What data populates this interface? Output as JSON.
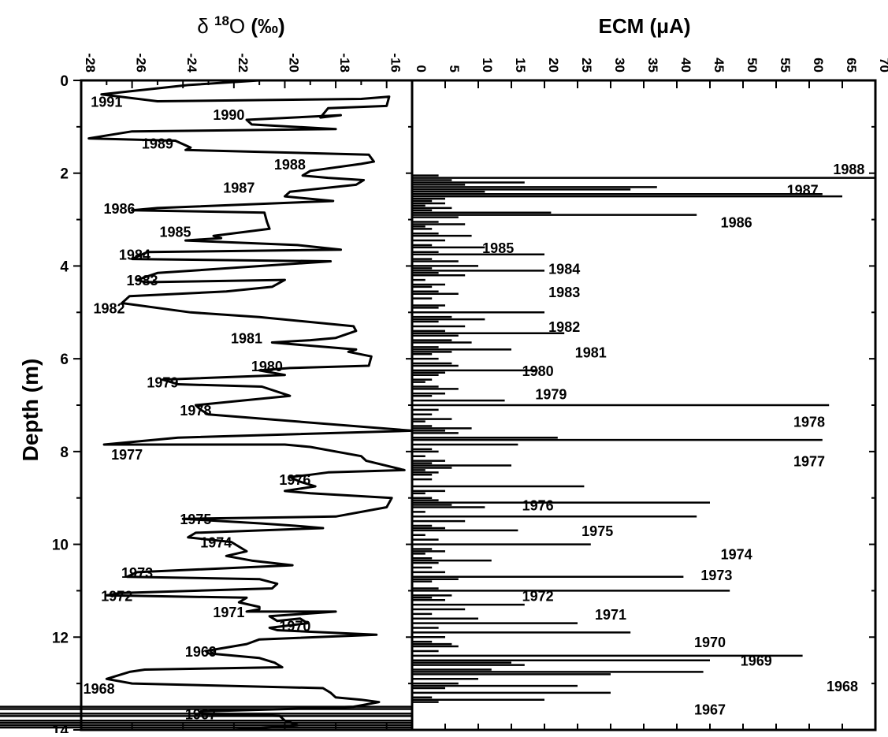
{
  "chart_data": [
    {
      "type": "line",
      "title": "δ ¹⁸O (‰)",
      "title_parts": {
        "symbol": "δ",
        "sup": "18",
        "element": "O",
        "unit": "(‰)"
      },
      "ylabel": "Depth (m)",
      "xlim": [
        -28,
        -15
      ],
      "ylim": [
        0,
        14
      ],
      "y_inverted": true,
      "x_axis_position": "top",
      "x_ticks": [
        "-28",
        "-26",
        "-24",
        "-22",
        "-20",
        "-18",
        "-16"
      ],
      "y_ticks": [
        "0",
        "2",
        "4",
        "6",
        "8",
        "10",
        "12",
        "14"
      ],
      "series": [
        {
          "x": [
            -21.0,
            -23.8,
            -27.2,
            -25.0,
            -17.0,
            -15.9,
            -16.0,
            -18.3,
            -18.6,
            -17.8,
            -21.5,
            -21.3,
            -18.0,
            -26.0,
            -27.7,
            -24.3,
            -23.7,
            -23.9,
            -16.7,
            -16.5,
            -17.0,
            -19.0,
            -19.3,
            -18.3,
            -16.9,
            -17.2,
            -19.8,
            -20.0,
            -18.1,
            -25.0,
            -26.0,
            -20.8,
            -20.7,
            -20.6,
            -22.8,
            -22.5,
            -23.9,
            -19.5,
            -17.8,
            -25.4,
            -26.0,
            -18.2,
            -25.0,
            -25.8,
            -25.5,
            -20.0,
            -20.5,
            -22.3,
            -26.1,
            -26.4,
            -23.7,
            -21.0,
            -17.3,
            -17.2,
            -18.0,
            -19.0,
            -20.5,
            -17.2,
            -17.5,
            -16.6,
            -16.7,
            -19.8,
            -21.0,
            -20.0,
            -24.8,
            -24.2,
            -20.9,
            -19.8,
            -23.5,
            -23.3,
            -23.0,
            -15.0,
            -24.2,
            -27.1,
            -20.0,
            -19.0,
            -17.0,
            -16.8,
            -15.3,
            -18.3,
            -19.0,
            -19.8,
            -19.4,
            -18.8,
            -20.0,
            -19.0,
            -15.8,
            -16.0,
            -18.0,
            -24.0,
            -20.9,
            -19.6,
            -18.5,
            -23.5,
            -23.8,
            -22.1,
            -21.8,
            -21.5,
            -22.3,
            -21.3,
            -19.7,
            -25.8,
            -26.2,
            -21.0,
            -20.3,
            -20.5,
            -26.5,
            -27.0,
            -21.5,
            -21.8,
            -21.0,
            -21.0,
            -21.5,
            -18.0,
            -20.6,
            -20.3,
            -19.4,
            -19.1,
            -20.6,
            -20.3,
            -16.4,
            -21.0,
            -21.5,
            -23.1,
            -23.0,
            -21.0,
            -20.4,
            -20.1,
            -25.5,
            -26.1,
            -27.0,
            -26.0,
            -18.5,
            -18.2,
            -18.0,
            -17.0,
            -16.3,
            -17.3,
            -19.9,
            -23.3,
            -23.3,
            -20.2,
            -20.0,
            -19.5,
            -22.0,
            -24.0
          ],
          "y": [
            0.0,
            0.1,
            0.3,
            0.45,
            0.4,
            0.35,
            0.55,
            0.6,
            0.8,
            0.75,
            0.85,
            0.95,
            1.05,
            1.1,
            1.25,
            1.3,
            1.45,
            1.5,
            1.6,
            1.75,
            1.8,
            1.95,
            2.05,
            2.1,
            2.15,
            2.25,
            2.4,
            2.5,
            2.6,
            2.75,
            2.8,
            2.85,
            3.05,
            3.2,
            3.35,
            3.4,
            3.45,
            3.55,
            3.65,
            3.7,
            3.85,
            3.9,
            4.15,
            4.3,
            4.35,
            4.3,
            4.45,
            4.55,
            4.65,
            4.8,
            5.0,
            5.1,
            5.3,
            5.4,
            5.55,
            5.6,
            5.65,
            5.8,
            5.85,
            5.95,
            6.15,
            6.2,
            6.25,
            6.35,
            6.45,
            6.55,
            6.6,
            6.8,
            7.0,
            7.1,
            7.2,
            7.55,
            7.7,
            7.85,
            7.85,
            7.9,
            8.1,
            8.2,
            8.4,
            8.45,
            8.5,
            8.55,
            8.65,
            8.75,
            8.85,
            8.9,
            9.0,
            9.2,
            9.4,
            9.45,
            9.55,
            9.6,
            9.65,
            9.75,
            9.85,
            9.95,
            10.05,
            10.15,
            10.25,
            10.35,
            10.45,
            10.6,
            10.7,
            10.75,
            10.85,
            10.95,
            11.05,
            11.1,
            11.15,
            11.25,
            11.35,
            11.4,
            11.45,
            11.45,
            11.55,
            11.65,
            11.6,
            11.7,
            11.8,
            11.85,
            11.95,
            12.05,
            12.15,
            12.3,
            12.35,
            12.45,
            12.55,
            12.65,
            12.7,
            12.75,
            12.9,
            13.0,
            13.1,
            13.2,
            13.3,
            13.35,
            13.4,
            13.5,
            13.55,
            13.6,
            13.65,
            13.7,
            13.8,
            13.9,
            14.0,
            14.0
          ]
        }
      ],
      "annotations": [
        "1991",
        "1990",
        "1989",
        "1988",
        "1987",
        "1986",
        "1985",
        "1984",
        "1983",
        "1982",
        "1981",
        "1980",
        "1979",
        "1978",
        "1977",
        "1976",
        "1975",
        "1974",
        "1973",
        "1972",
        "1971",
        "1970",
        "1969",
        "1968",
        "1967"
      ]
    },
    {
      "type": "bar",
      "orientation": "horizontal",
      "title": "ECM (μA)",
      "title_parts": {
        "name": "ECM",
        "unit": "(μA)"
      },
      "xlim": [
        0,
        70
      ],
      "ylim": [
        0,
        14
      ],
      "y_inverted": true,
      "x_axis_position": "top",
      "x_ticks": [
        "0",
        "5",
        "10",
        "15",
        "20",
        "25",
        "30",
        "35",
        "40",
        "45",
        "50",
        "55",
        "60",
        "65",
        "70"
      ],
      "series": [
        {
          "depth": [
            2.05,
            2.1,
            2.15,
            2.2,
            2.25,
            2.3,
            2.35,
            2.4,
            2.45,
            2.5,
            2.55,
            2.6,
            2.65,
            2.7,
            2.75,
            2.8,
            2.85,
            2.9,
            2.95,
            3.05,
            3.1,
            3.15,
            3.2,
            3.3,
            3.35,
            3.45,
            3.55,
            3.6,
            3.7,
            3.75,
            3.85,
            3.9,
            4.0,
            4.05,
            4.1,
            4.15,
            4.2,
            4.3,
            4.4,
            4.45,
            4.55,
            4.6,
            4.7,
            4.85,
            4.9,
            5.0,
            5.1,
            5.15,
            5.2,
            5.3,
            5.4,
            5.45,
            5.5,
            5.6,
            5.65,
            5.75,
            5.8,
            5.85,
            5.9,
            6.0,
            6.1,
            6.15,
            6.25,
            6.3,
            6.35,
            6.45,
            6.5,
            6.6,
            6.65,
            6.75,
            6.8,
            6.9,
            7.0,
            7.1,
            7.2,
            7.3,
            7.35,
            7.45,
            7.5,
            7.55,
            7.6,
            7.7,
            7.75,
            7.85,
            7.95,
            8.0,
            8.1,
            8.2,
            8.25,
            8.3,
            8.35,
            8.4,
            8.45,
            8.5,
            8.6,
            8.75,
            8.85,
            8.9,
            9.0,
            9.05,
            9.1,
            9.15,
            9.2,
            9.3,
            9.4,
            9.5,
            9.6,
            9.65,
            9.7,
            9.8,
            9.9,
            10.0,
            10.1,
            10.15,
            10.2,
            10.3,
            10.35,
            10.4,
            10.5,
            10.6,
            10.7,
            10.75,
            10.8,
            10.95,
            11.0,
            11.1,
            11.15,
            11.2,
            11.3,
            11.4,
            11.5,
            11.6,
            11.7,
            11.8,
            11.9,
            12.0,
            12.1,
            12.15,
            12.2,
            12.3,
            12.4,
            12.5,
            12.55,
            12.6,
            12.7,
            12.75,
            12.8,
            12.9,
            13.0,
            13.05,
            13.1,
            13.2,
            13.3,
            13.35,
            13.4,
            13.5,
            13.55,
            13.65,
            13.7,
            13.8,
            13.85,
            13.9,
            13.95
          ],
          "values": [
            4,
            70,
            6,
            17,
            8,
            37,
            33,
            11,
            62,
            65,
            5,
            3,
            5,
            2,
            6,
            3,
            21,
            43,
            7,
            4,
            8,
            2,
            3,
            4,
            9,
            5,
            3,
            11,
            4,
            20,
            3,
            7,
            10,
            3,
            20,
            4,
            8,
            2,
            5,
            3,
            4,
            7,
            3,
            5,
            4,
            20,
            6,
            11,
            4,
            8,
            5,
            23,
            7,
            6,
            9,
            4,
            15,
            6,
            3,
            4,
            6,
            7,
            19,
            5,
            4,
            3,
            2,
            4,
            7,
            5,
            3,
            14,
            63,
            4,
            3,
            6,
            2,
            3,
            9,
            5,
            7,
            22,
            62,
            16,
            3,
            4,
            2,
            5,
            3,
            15,
            6,
            2,
            4,
            3,
            3,
            26,
            5,
            2,
            3,
            4,
            45,
            6,
            11,
            2,
            43,
            8,
            3,
            5,
            16,
            2,
            4,
            27,
            3,
            5,
            2,
            3,
            12,
            4,
            3,
            5,
            41,
            7,
            3,
            4,
            48,
            6,
            3,
            5,
            17,
            8,
            3,
            10,
            25,
            4,
            33,
            5,
            3,
            6,
            7,
            4,
            59,
            45,
            15,
            17,
            12,
            44,
            30,
            10,
            7,
            25,
            5,
            30,
            3,
            20,
            4
          ]
        }
      ],
      "annotations": [
        "1988",
        "1987",
        "1986",
        "1985",
        "1984",
        "1983",
        "1982",
        "1981",
        "1980",
        "1979",
        "1978",
        "1977",
        "1976",
        "1975",
        "1974",
        "1973",
        "1972",
        "1971",
        "1970",
        "1969",
        "1968",
        "1967"
      ]
    }
  ],
  "year_labels_left": [
    {
      "text": "1991",
      "depth": 0.45,
      "x": -27.0
    },
    {
      "text": "1990",
      "depth": 0.73,
      "x": -22.2
    },
    {
      "text": "1989",
      "depth": 1.35,
      "x": -25.0
    },
    {
      "text": "1988",
      "depth": 1.8,
      "x": -19.8
    },
    {
      "text": "1987",
      "depth": 2.3,
      "x": -21.8
    },
    {
      "text": "1986",
      "depth": 2.75,
      "x": -26.5
    },
    {
      "text": "1985",
      "depth": 3.25,
      "x": -24.3
    },
    {
      "text": "1984",
      "depth": 3.75,
      "x": -25.9
    },
    {
      "text": "1983",
      "depth": 4.3,
      "x": -25.6
    },
    {
      "text": "1982",
      "depth": 4.9,
      "x": -26.9
    },
    {
      "text": "1981",
      "depth": 5.55,
      "x": -21.5
    },
    {
      "text": "1980",
      "depth": 6.15,
      "x": -20.7
    },
    {
      "text": "1979",
      "depth": 6.5,
      "x": -24.8
    },
    {
      "text": "1978",
      "depth": 7.1,
      "x": -23.5
    },
    {
      "text": "1977",
      "depth": 8.05,
      "x": -26.2
    },
    {
      "text": "1976",
      "depth": 8.6,
      "x": -19.6
    },
    {
      "text": "1975",
      "depth": 9.45,
      "x": -23.5
    },
    {
      "text": "1974",
      "depth": 9.95,
      "x": -22.7
    },
    {
      "text": "1973",
      "depth": 10.6,
      "x": -25.8
    },
    {
      "text": "1972",
      "depth": 11.1,
      "x": -26.6
    },
    {
      "text": "1971",
      "depth": 11.45,
      "x": -22.2
    },
    {
      "text": "1970",
      "depth": 11.75,
      "x": -19.6
    },
    {
      "text": "1969",
      "depth": 12.3,
      "x": -23.3
    },
    {
      "text": "1968",
      "depth": 13.1,
      "x": -27.3
    },
    {
      "text": "1967",
      "depth": 13.65,
      "x": -23.3
    }
  ],
  "year_labels_right": [
    {
      "text": "1988",
      "depth": 1.9,
      "x": 66
    },
    {
      "text": "1987",
      "depth": 2.35,
      "x": 59
    },
    {
      "text": "1986",
      "depth": 3.05,
      "x": 49
    },
    {
      "text": "1985",
      "depth": 3.6,
      "x": 13
    },
    {
      "text": "1984",
      "depth": 4.05,
      "x": 23
    },
    {
      "text": "1983",
      "depth": 4.55,
      "x": 23
    },
    {
      "text": "1982",
      "depth": 5.3,
      "x": 23
    },
    {
      "text": "1981",
      "depth": 5.85,
      "x": 27
    },
    {
      "text": "1980",
      "depth": 6.25,
      "x": 19
    },
    {
      "text": "1979",
      "depth": 6.75,
      "x": 21
    },
    {
      "text": "1978",
      "depth": 7.35,
      "x": 60
    },
    {
      "text": "1977",
      "depth": 8.2,
      "x": 60
    },
    {
      "text": "1976",
      "depth": 9.15,
      "x": 19
    },
    {
      "text": "1975",
      "depth": 9.7,
      "x": 28
    },
    {
      "text": "1974",
      "depth": 10.2,
      "x": 49
    },
    {
      "text": "1973",
      "depth": 10.65,
      "x": 46
    },
    {
      "text": "1972",
      "depth": 11.1,
      "x": 19
    },
    {
      "text": "1971",
      "depth": 11.5,
      "x": 30
    },
    {
      "text": "1970",
      "depth": 12.1,
      "x": 45
    },
    {
      "text": "1969",
      "depth": 12.5,
      "x": 52
    },
    {
      "text": "1968",
      "depth": 13.05,
      "x": 65
    },
    {
      "text": "1967",
      "depth": 13.55,
      "x": 45
    }
  ]
}
